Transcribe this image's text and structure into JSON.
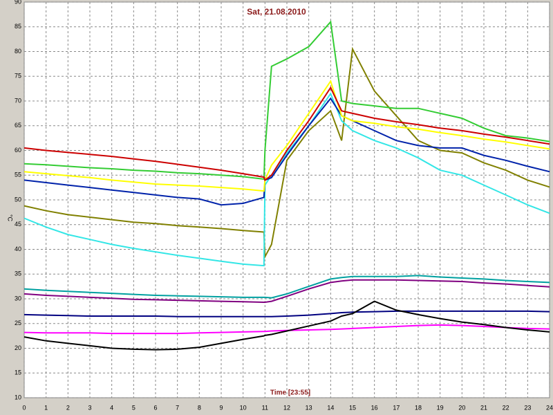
{
  "chart_data": {
    "type": "line",
    "title": "Sat, 21.08.2010",
    "x_label": "Time [23:55]",
    "y_label": "°C",
    "x": [
      0,
      1,
      2,
      3,
      4,
      5,
      6,
      7,
      8,
      9,
      10,
      10.95,
      11,
      11.3,
      12,
      13,
      14,
      14.5,
      15,
      16,
      17,
      18,
      19,
      20,
      21,
      22,
      23,
      24
    ],
    "xlim": [
      0,
      24
    ],
    "xticks": [
      0,
      1,
      2,
      3,
      4,
      5,
      6,
      7,
      8,
      9,
      10,
      11,
      12,
      13,
      14,
      15,
      16,
      17,
      18,
      19,
      20,
      21,
      22,
      23,
      24
    ],
    "ylim": [
      10,
      90
    ],
    "yticks": [
      10,
      15,
      20,
      25,
      30,
      35,
      40,
      45,
      50,
      55,
      60,
      65,
      70,
      75,
      80,
      85,
      90
    ],
    "grid": true,
    "series": [
      {
        "color": "#00a0a0",
        "values": [
          32,
          31.7,
          31.5,
          31.3,
          31.1,
          30.9,
          30.7,
          30.6,
          30.5,
          30.4,
          30.3,
          30.3,
          30.3,
          30.2,
          31,
          32.5,
          34,
          34.3,
          34.5,
          34.5,
          34.5,
          34.7,
          34.4,
          34.2,
          34,
          33.7,
          33.5,
          33.3
        ]
      },
      {
        "color": "#800080",
        "values": [
          31,
          30.7,
          30.5,
          30.3,
          30.1,
          29.9,
          29.8,
          29.7,
          29.6,
          29.5,
          29.4,
          29.3,
          29.3,
          29.5,
          30.5,
          32,
          33.3,
          33.6,
          33.8,
          33.8,
          33.8,
          33.7,
          33.6,
          33.5,
          33.2,
          33,
          32.7,
          32.4
        ]
      },
      {
        "color": "#000080",
        "values": [
          26.8,
          26.7,
          26.6,
          26.5,
          26.5,
          26.5,
          26.5,
          26.4,
          26.4,
          26.4,
          26.4,
          26.4,
          26.4,
          26.4,
          26.5,
          26.7,
          27,
          27.2,
          27.3,
          27.4,
          27.5,
          27.5,
          27.5,
          27.5,
          27.5,
          27.5,
          27.5,
          27.4
        ]
      },
      {
        "color": "#ff00ff",
        "values": [
          23.2,
          23.1,
          23.1,
          23.1,
          23,
          23,
          23,
          23,
          23.1,
          23.2,
          23.3,
          23.4,
          23.4,
          23.5,
          23.6,
          23.7,
          23.8,
          23.9,
          24,
          24.2,
          24.4,
          24.6,
          24.7,
          24.6,
          24.4,
          24.2,
          24,
          23.9
        ]
      },
      {
        "color": "#000000",
        "values": [
          22.3,
          21.5,
          21,
          20.5,
          20,
          19.8,
          19.7,
          19.8,
          20.2,
          21,
          21.8,
          22.5,
          22.6,
          22.8,
          23.5,
          24.5,
          25.5,
          26.5,
          27,
          29.5,
          27.7,
          26.8,
          26,
          25.3,
          24.8,
          24.2,
          23.7,
          23.3
        ]
      },
      {
        "color": "#808000",
        "values": [
          48.8,
          47.8,
          47,
          46.5,
          46,
          45.5,
          45.2,
          44.8,
          44.5,
          44.2,
          43.8,
          43.5,
          38.5,
          41,
          58,
          64,
          68,
          62,
          80.5,
          72,
          67,
          62,
          60,
          59.5,
          57.5,
          56,
          54,
          52.6
        ]
      },
      {
        "color": "#33e6e6",
        "values": [
          46.3,
          44.5,
          43,
          42,
          41,
          40.2,
          39.5,
          38.8,
          38.2,
          37.6,
          37,
          36.7,
          53,
          55,
          59.5,
          65,
          71.5,
          66,
          64,
          62,
          60.5,
          58.5,
          56,
          55,
          53,
          51,
          49,
          47.3
        ]
      },
      {
        "color": "#0022aa",
        "values": [
          54,
          53.5,
          53,
          52.5,
          52,
          51.5,
          51,
          50.5,
          50.2,
          49,
          49.3,
          50.5,
          54,
          54.5,
          59,
          65,
          70.5,
          67,
          66,
          64,
          62,
          61,
          60.5,
          60.5,
          59,
          58,
          56.8,
          55.7
        ]
      },
      {
        "color": "#ffff00",
        "values": [
          55.7,
          55.3,
          54.9,
          54.5,
          54,
          53.6,
          53.2,
          53,
          52.8,
          52.5,
          52.2,
          51.8,
          54,
          57,
          61,
          67.5,
          74,
          67,
          66,
          65.5,
          64.8,
          64.3,
          63.6,
          63,
          62.3,
          61.7,
          61,
          60.3
        ]
      },
      {
        "color": "#33cc33",
        "values": [
          57.3,
          57.1,
          56.8,
          56.5,
          56.3,
          56,
          55.8,
          55.5,
          55.3,
          55,
          54.7,
          54.2,
          60,
          77,
          78.5,
          81,
          86,
          70,
          69.5,
          69,
          68.5,
          68.5,
          67.5,
          66.5,
          64.5,
          63,
          62.5,
          61.8
        ]
      },
      {
        "color": "#cc0000",
        "values": [
          60.5,
          60,
          59.6,
          59.2,
          58.8,
          58.3,
          57.8,
          57.2,
          56.6,
          56,
          55.3,
          54.6,
          54,
          55,
          60,
          66,
          72.7,
          68,
          67.5,
          66.5,
          65.8,
          65.2,
          64.5,
          64,
          63.3,
          62.7,
          62,
          61.3
        ]
      }
    ]
  }
}
